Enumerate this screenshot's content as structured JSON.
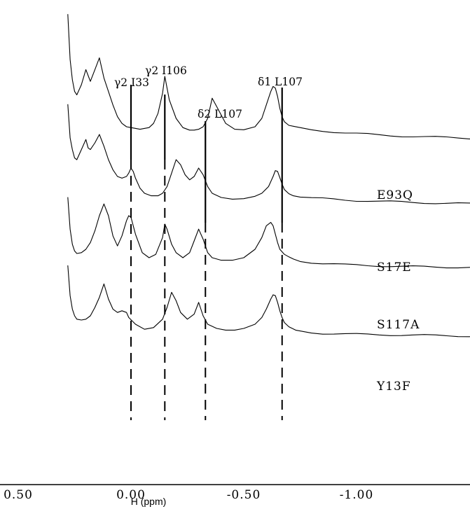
{
  "chart_data": {
    "type": "line",
    "title": "",
    "xlabel": "H (ppm)",
    "ylabel": "",
    "x_axis": {
      "reversed": true,
      "ticks": [
        {
          "value": 0.5,
          "label": "0.50"
        },
        {
          "value": 0.0,
          "label": "0.00"
        },
        {
          "value": -0.5,
          "label": "-0.50"
        },
        {
          "value": -1.0,
          "label": "-1.00"
        }
      ]
    },
    "reference_lines": [
      {
        "label": "γ2 I33",
        "x": 0.0
      },
      {
        "label": "γ2 I106",
        "x": -0.15
      },
      {
        "label": "δ2 L107",
        "x": -0.33
      },
      {
        "label": "δ1 L107",
        "x": -0.67
      }
    ],
    "series": [
      {
        "name": "E93Q",
        "x": [
          0.28,
          0.27,
          0.26,
          0.25,
          0.24,
          0.22,
          0.2,
          0.18,
          0.16,
          0.14,
          0.12,
          0.1,
          0.08,
          0.06,
          0.04,
          0.02,
          0.0,
          -0.04,
          -0.08,
          -0.1,
          -0.12,
          -0.14,
          -0.15,
          -0.17,
          -0.2,
          -0.23,
          -0.26,
          -0.28,
          -0.3,
          -0.32,
          -0.34,
          -0.36,
          -0.38,
          -0.42,
          -0.46,
          -0.5,
          -0.55,
          -0.58,
          -0.6,
          -0.62,
          -0.63,
          -0.64,
          -0.65,
          -0.66,
          -0.67,
          -0.68,
          -0.7,
          -0.72,
          -0.75,
          -0.8,
          -0.85,
          -0.9,
          -0.95,
          -1.0,
          -1.05,
          -1.1,
          -1.15,
          -1.2,
          -1.25,
          -1.3,
          -1.35,
          -1.4,
          -1.45,
          -1.5,
          -1.55,
          -1.6
        ],
        "y": [
          7.7,
          5.0,
          3.8,
          3.1,
          2.9,
          3.5,
          4.4,
          3.7,
          4.4,
          5.1,
          3.9,
          3.1,
          2.3,
          1.6,
          1.2,
          1.0,
          0.95,
          0.85,
          0.95,
          1.2,
          1.8,
          3.0,
          4.0,
          2.6,
          1.5,
          0.95,
          0.8,
          0.8,
          0.85,
          1.0,
          1.5,
          2.7,
          2.2,
          1.2,
          0.85,
          0.82,
          1.0,
          1.5,
          2.3,
          3.1,
          3.4,
          3.3,
          2.8,
          2.1,
          1.6,
          1.3,
          1.1,
          1.0,
          0.9,
          0.8,
          0.75,
          0.7,
          0.65,
          0.6,
          0.55,
          0.5,
          0.47,
          0.45,
          0.43,
          0.4,
          0.38,
          0.36,
          0.34,
          0.32,
          0.3,
          0.28
        ]
      },
      {
        "name": "S17E",
        "x": [
          0.28,
          0.27,
          0.26,
          0.25,
          0.24,
          0.22,
          0.2,
          0.19,
          0.18,
          0.16,
          0.14,
          0.12,
          0.1,
          0.08,
          0.06,
          0.04,
          0.02,
          0.01,
          0.0,
          -0.01,
          -0.02,
          -0.04,
          -0.06,
          -0.09,
          -0.12,
          -0.14,
          -0.16,
          -0.18,
          -0.2,
          -0.22,
          -0.24,
          -0.26,
          -0.28,
          -0.3,
          -0.32,
          -0.34,
          -0.36,
          -0.4,
          -0.45,
          -0.5,
          -0.55,
          -0.58,
          -0.61,
          -0.63,
          -0.64,
          -0.65,
          -0.66,
          -0.67,
          -0.68,
          -0.7,
          -0.72,
          -0.75,
          -0.8,
          -0.85,
          -0.9,
          -0.95,
          -1.0,
          -1.05,
          -1.1,
          -1.15,
          -1.2,
          -1.25,
          -1.3,
          -1.35,
          -1.4,
          -1.45,
          -1.5,
          -1.55,
          -1.6
        ],
        "y": [
          6.3,
          4.3,
          3.6,
          3.1,
          3.0,
          3.6,
          4.2,
          3.7,
          3.6,
          4.0,
          4.5,
          3.8,
          3.0,
          2.4,
          2.0,
          1.9,
          2.0,
          2.2,
          2.5,
          2.3,
          1.9,
          1.3,
          1.0,
          0.85,
          0.85,
          1.0,
          1.4,
          2.2,
          3.0,
          2.7,
          2.1,
          1.8,
          2.0,
          2.5,
          2.1,
          1.4,
          1.0,
          0.75,
          0.65,
          0.68,
          0.82,
          1.0,
          1.4,
          2.0,
          2.35,
          2.3,
          1.9,
          1.5,
          1.2,
          1.0,
          0.9,
          0.8,
          0.72,
          0.68,
          0.64,
          0.6,
          0.57,
          0.55,
          0.52,
          0.5,
          0.48,
          0.46,
          0.44,
          0.42,
          0.4,
          0.39,
          0.38,
          0.37,
          0.36
        ]
      },
      {
        "name": "S117A",
        "x": [
          0.28,
          0.27,
          0.26,
          0.25,
          0.24,
          0.22,
          0.2,
          0.18,
          0.16,
          0.14,
          0.12,
          0.1,
          0.08,
          0.06,
          0.04,
          0.02,
          0.01,
          0.0,
          -0.02,
          -0.05,
          -0.08,
          -0.11,
          -0.14,
          -0.15,
          -0.16,
          -0.18,
          -0.2,
          -0.23,
          -0.26,
          -0.28,
          -0.3,
          -0.32,
          -0.34,
          -0.36,
          -0.4,
          -0.45,
          -0.5,
          -0.55,
          -0.58,
          -0.6,
          -0.62,
          -0.63,
          -0.64,
          -0.65,
          -0.66,
          -0.68,
          -0.7,
          -0.72,
          -0.75,
          -0.8,
          -0.85,
          -0.9,
          -0.95,
          -1.0,
          -1.05,
          -1.1,
          -1.15,
          -1.2,
          -1.25,
          -1.3,
          -1.35,
          -1.4,
          -1.45,
          -1.5,
          -1.55,
          -1.6
        ],
        "y": [
          4.6,
          2.7,
          1.8,
          1.4,
          1.25,
          1.3,
          1.5,
          1.9,
          2.6,
          3.5,
          4.2,
          3.5,
          2.3,
          1.7,
          2.3,
          3.2,
          3.5,
          3.4,
          2.4,
          1.3,
          1.0,
          1.2,
          2.2,
          3.0,
          2.7,
          1.8,
          1.3,
          1.0,
          1.3,
          2.0,
          2.7,
          2.1,
          1.3,
          1.0,
          0.85,
          0.85,
          1.0,
          1.5,
          2.2,
          2.9,
          3.1,
          2.9,
          2.4,
          1.9,
          1.5,
          1.2,
          1.0,
          0.9,
          0.8,
          0.72,
          0.66,
          0.62,
          0.58,
          0.56,
          0.54,
          0.52,
          0.5,
          0.48,
          0.47,
          0.46,
          0.45,
          0.44,
          0.43,
          0.42,
          0.41,
          0.4
        ]
      },
      {
        "name": "Y13F",
        "x": [
          0.28,
          0.27,
          0.26,
          0.25,
          0.24,
          0.22,
          0.2,
          0.18,
          0.16,
          0.14,
          0.12,
          0.1,
          0.08,
          0.06,
          0.04,
          0.02,
          0.01,
          -0.02,
          -0.06,
          -0.1,
          -0.14,
          -0.16,
          -0.18,
          -0.2,
          -0.22,
          -0.25,
          -0.28,
          -0.3,
          -0.32,
          -0.34,
          -0.38,
          -0.42,
          -0.46,
          -0.5,
          -0.55,
          -0.58,
          -0.6,
          -0.62,
          -0.63,
          -0.64,
          -0.65,
          -0.66,
          -0.67,
          -0.68,
          -0.7,
          -0.73,
          -0.76,
          -0.8,
          -0.85,
          -0.9,
          -0.95,
          -1.0,
          -1.05,
          -1.1,
          -1.15,
          -1.2,
          -1.25,
          -1.3,
          -1.35,
          -1.4,
          -1.45,
          -1.5,
          -1.55,
          -1.6
        ],
        "y": [
          4.5,
          2.7,
          1.9,
          1.5,
          1.3,
          1.25,
          1.3,
          1.5,
          2.0,
          2.6,
          3.4,
          2.5,
          1.9,
          1.7,
          1.8,
          1.7,
          1.4,
          1.0,
          0.7,
          0.8,
          1.3,
          2.0,
          2.9,
          2.4,
          1.7,
          1.3,
          1.6,
          2.3,
          1.5,
          1.0,
          0.75,
          0.65,
          0.65,
          0.75,
          1.0,
          1.4,
          1.9,
          2.5,
          2.75,
          2.7,
          2.3,
          1.8,
          1.4,
          1.1,
          0.85,
          0.65,
          0.55,
          0.5,
          0.46,
          0.44,
          0.42,
          0.4,
          0.39,
          0.38,
          0.37,
          0.36,
          0.35,
          0.34,
          0.33,
          0.32,
          0.31,
          0.3,
          0.29,
          0.28
        ]
      }
    ]
  }
}
